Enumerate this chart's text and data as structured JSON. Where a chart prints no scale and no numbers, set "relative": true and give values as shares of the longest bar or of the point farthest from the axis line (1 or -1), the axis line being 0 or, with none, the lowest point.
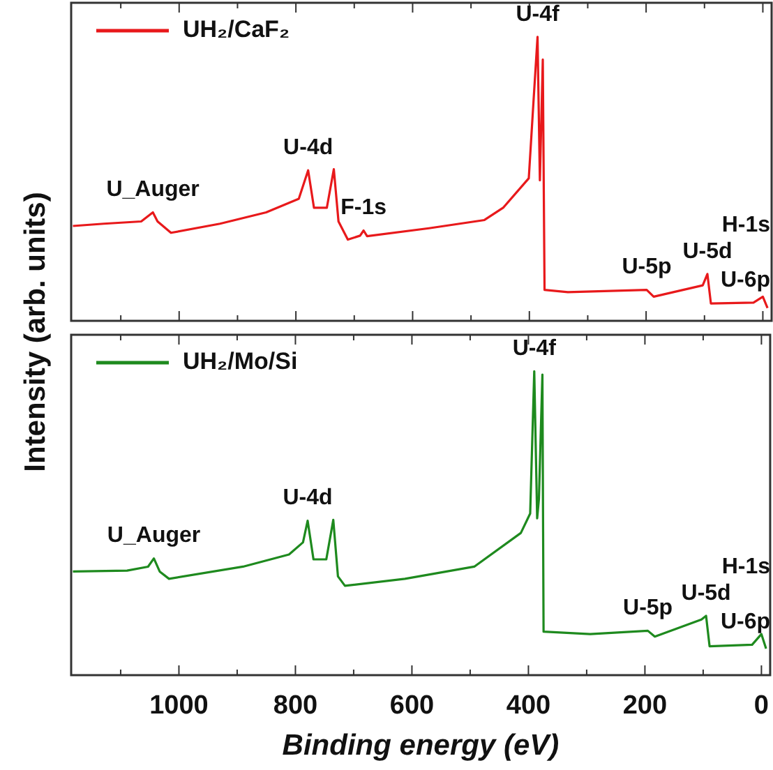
{
  "chart_data": [
    {
      "type": "line",
      "relative": true,
      "ylabel": "Intensity (arb. units)",
      "xlim": [
        1185,
        -15
      ],
      "xticks": [
        {
          "value": 1100,
          "label": null
        },
        1000,
        {
          "value": 900,
          "label": null
        },
        800,
        {
          "value": 700,
          "label": null
        },
        600,
        {
          "value": 500,
          "label": null
        },
        400,
        {
          "value": 300,
          "label": null
        },
        200,
        {
          "value": 100,
          "label": null
        },
        0
      ],
      "tick_labels": false,
      "legend": "top left",
      "marker": "none",
      "grid": false,
      "series": [
        {
          "name": "UH₂/CaF₂",
          "color": "#e8191b",
          "x": [
            1182,
            1129,
            1065,
            1045,
            1037,
            1014,
            930,
            851,
            795,
            779,
            769,
            747,
            735,
            727,
            711,
            690,
            684,
            678,
            572,
            477,
            445,
            401,
            393,
            386,
            382,
            377,
            374,
            334,
            199,
            187,
            103,
            95,
            89,
            16,
            0,
            -8
          ],
          "values": [
            0.334,
            0.342,
            0.35,
            0.382,
            0.35,
            0.31,
            0.342,
            0.382,
            0.43,
            0.53,
            0.398,
            0.398,
            0.534,
            0.35,
            0.286,
            0.3,
            0.318,
            0.298,
            0.326,
            0.355,
            0.398,
            0.502,
            0.77,
            1,
            0.495,
            0.92,
            0.109,
            0.101,
            0.109,
            0.085,
            0.125,
            0.165,
            0.061,
            0.064,
            0.085,
            0.045
          ]
        }
      ],
      "annotations": [
        {
          "text": "U_Auger",
          "x": 1045,
          "y": 0.382
        },
        {
          "text": "U-4d",
          "x": 779,
          "y": 0.53
        },
        {
          "text": "F-1s",
          "x": 684,
          "y": 0.318
        },
        {
          "text": "U-4f",
          "x": 386,
          "y": 1
        },
        {
          "text": "U-5p",
          "x": 199,
          "y": 0.109
        },
        {
          "text": "U-5d",
          "x": 95,
          "y": 0.165
        },
        {
          "text": "U-6p",
          "x": 16,
          "y": 0.064
        },
        {
          "text": "H-1s",
          "x": 0,
          "y": 0.085
        }
      ]
    },
    {
      "type": "line",
      "relative": true,
      "xlabel": "Binding energy (eV)",
      "xlim": [
        1185,
        -15
      ],
      "xticks": [
        {
          "value": 1100,
          "label": null
        },
        1000,
        {
          "value": 900,
          "label": null
        },
        800,
        {
          "value": 700,
          "label": null
        },
        600,
        {
          "value": 500,
          "label": null
        },
        400,
        {
          "value": 300,
          "label": null
        },
        200,
        {
          "value": 100,
          "label": null
        },
        0
      ],
      "tick_labels": "x",
      "legend": "top left",
      "marker": "none",
      "grid": false,
      "series": [
        {
          "name": "UH₂/Mo/Si",
          "color": "#1e8a1e",
          "x": [
            1182,
            1089,
            1053,
            1043,
            1033,
            1017,
            890,
            811,
            787,
            779,
            769,
            747,
            735,
            727,
            715,
            612,
            493,
            413,
            397,
            390,
            385,
            382,
            376,
            374,
            294,
            195,
            183,
            103,
            95,
            89,
            16,
            0,
            -8
          ],
          "values": [
            0.341,
            0.344,
            0.357,
            0.384,
            0.341,
            0.317,
            0.357,
            0.397,
            0.437,
            0.508,
            0.381,
            0.381,
            0.511,
            0.325,
            0.294,
            0.317,
            0.357,
            0.468,
            0.532,
            1,
            0.516,
            0.579,
            0.989,
            0.143,
            0.135,
            0.146,
            0.127,
            0.183,
            0.195,
            0.095,
            0.1,
            0.135,
            0.087
          ]
        }
      ],
      "annotations": [
        {
          "text": "U_Auger",
          "x": 1043,
          "y": 0.384
        },
        {
          "text": "U-4d",
          "x": 779,
          "y": 0.508
        },
        {
          "text": "U-4f",
          "x": 390,
          "y": 1
        },
        {
          "text": "U-5p",
          "x": 195,
          "y": 0.146
        },
        {
          "text": "U-5d",
          "x": 95,
          "y": 0.195
        },
        {
          "text": "U-6p",
          "x": 16,
          "y": 0.1
        },
        {
          "text": "H-1s",
          "x": 0,
          "y": 0.135
        }
      ]
    }
  ]
}
